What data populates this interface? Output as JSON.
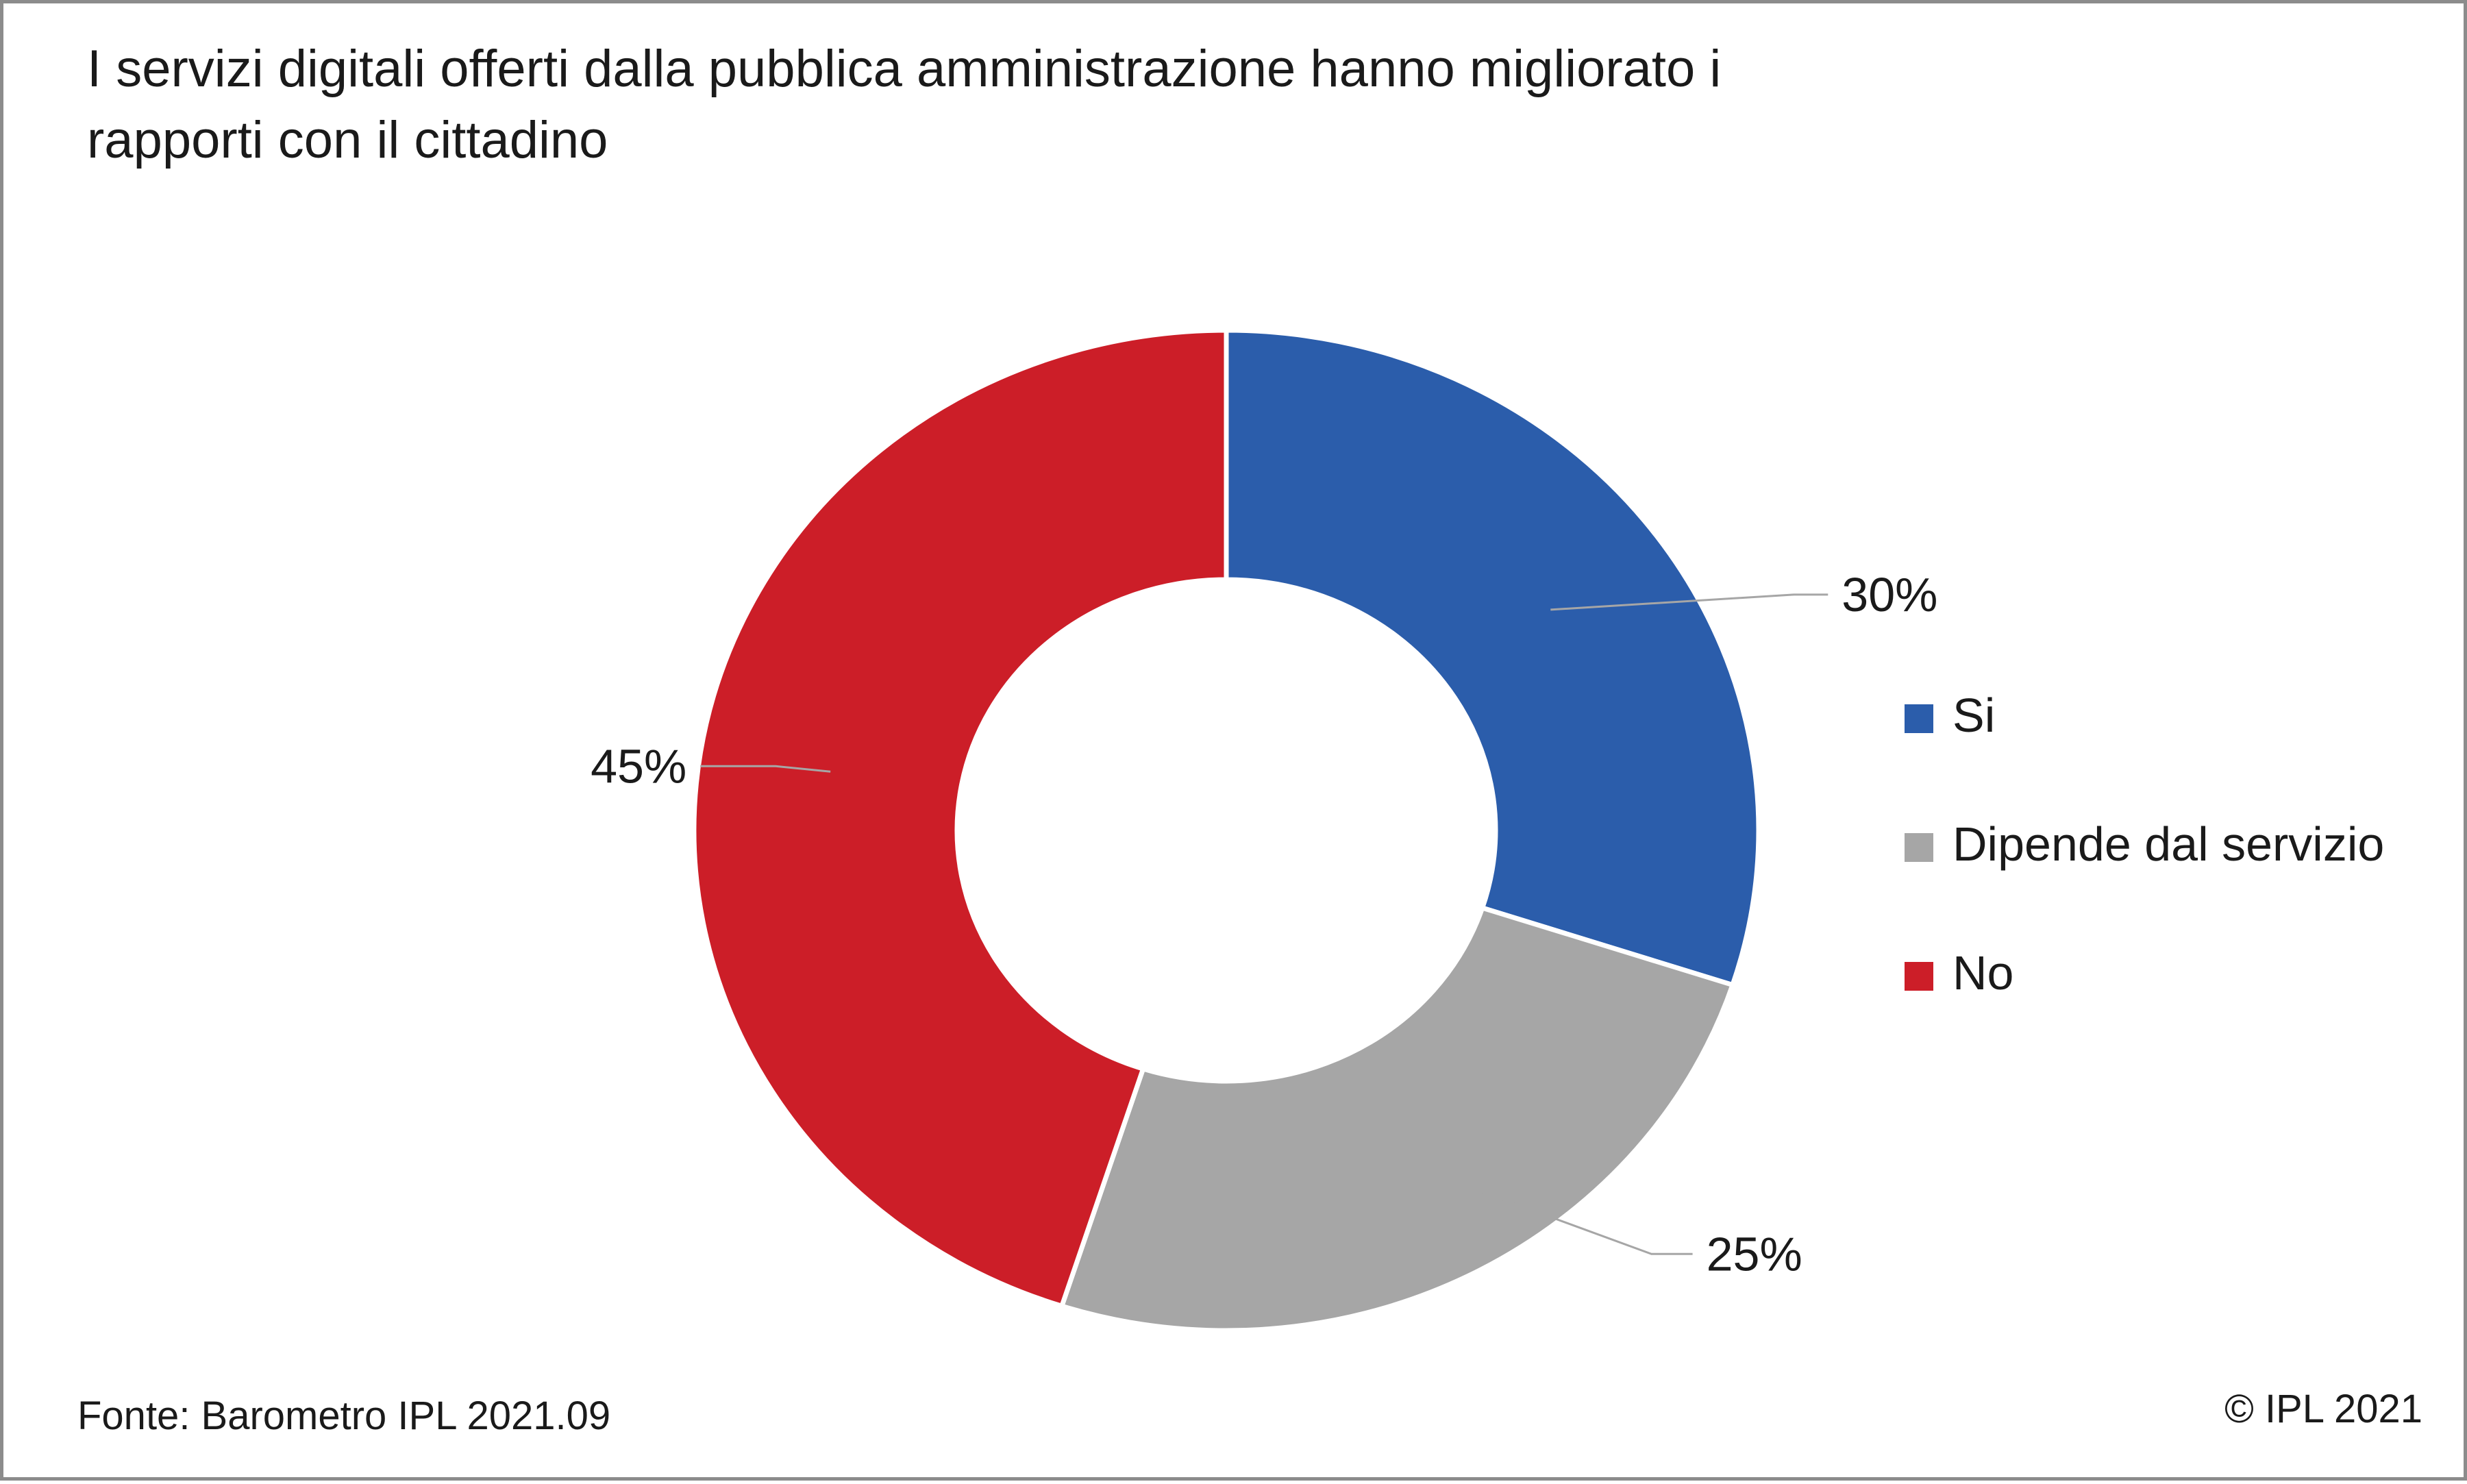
{
  "chart_data": {
    "type": "pie",
    "variant": "donut",
    "title_lines": [
      "I servizi digitali offerti dalla pubblica amministrazione  hanno migliorato i",
      "rapporti con il cittadino"
    ],
    "categories": [
      "Si",
      "Dipende dal servizio",
      "No"
    ],
    "values": [
      30,
      25,
      45
    ],
    "value_labels": [
      "30%",
      "25%",
      "45%"
    ],
    "colors": [
      "#2b5dab",
      "#a6a6a6",
      "#cc1e28"
    ],
    "legend_position": "right"
  },
  "footer": {
    "source": "Fonte: Barometro IPL 2021.09",
    "copyright": "© IPL 2021"
  }
}
